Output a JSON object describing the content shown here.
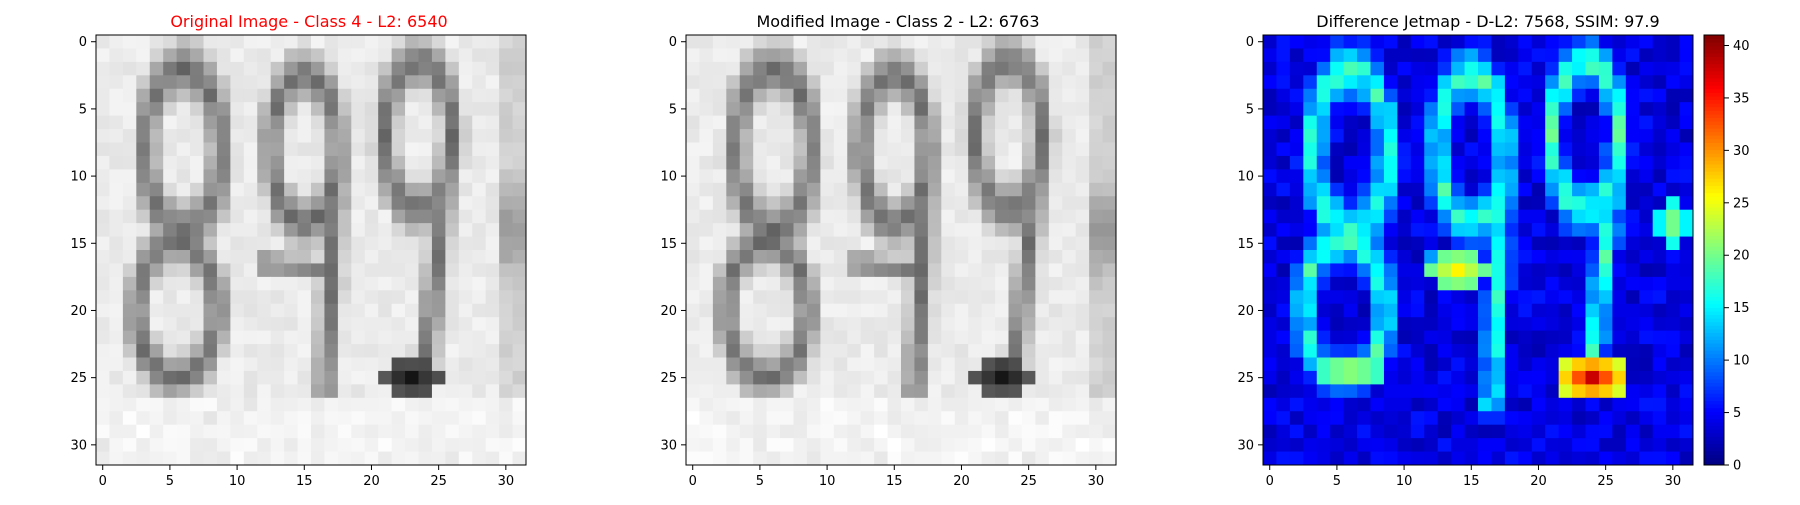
{
  "figure": {
    "panels": [
      {
        "title": "Original Image - Class 4 - L2: 6540",
        "title_color": "#ff0000"
      },
      {
        "title": "Modified Image - Class 2 - L2: 6763",
        "title_color": "#000000"
      },
      {
        "title": "Difference Jetmap - D-L2: 7568, SSIM: 97.9",
        "title_color": "#000000"
      }
    ]
  },
  "chart_data": [
    {
      "type": "heatmap",
      "title": "Original Image - Class 4 - L2: 6540",
      "colormap": "gray",
      "grid_size": [
        32,
        32
      ],
      "content": "grayscale photo of handwritten digits 8 9 9",
      "xticks": [
        "0",
        "5",
        "10",
        "15",
        "20",
        "25",
        "30"
      ],
      "yticks": [
        "0",
        "5",
        "10",
        "15",
        "20",
        "25",
        "30"
      ],
      "xlim": [
        -0.5,
        31.5
      ],
      "ylim": [
        31.5,
        -0.5
      ]
    },
    {
      "type": "heatmap",
      "title": "Modified Image - Class 2 - L2: 6763",
      "colormap": "gray",
      "grid_size": [
        32,
        32
      ],
      "content": "grayscale photo of handwritten digits 8 9 9 (slightly perturbed)",
      "xticks": [
        "0",
        "5",
        "10",
        "15",
        "20",
        "25",
        "30"
      ],
      "yticks": [
        "0",
        "5",
        "10",
        "15",
        "20",
        "25",
        "30"
      ],
      "xlim": [
        -0.5,
        31.5
      ],
      "ylim": [
        31.5,
        -0.5
      ]
    },
    {
      "type": "heatmap",
      "title": "Difference Jetmap - D-L2: 7568, SSIM: 97.9",
      "colormap": "jet",
      "grid_size": [
        32,
        32
      ],
      "xticks": [
        "0",
        "5",
        "10",
        "15",
        "20",
        "25",
        "30"
      ],
      "yticks": [
        "0",
        "5",
        "10",
        "15",
        "20",
        "25",
        "30"
      ],
      "xlim": [
        -0.5,
        31.5
      ],
      "ylim": [
        31.5,
        -0.5
      ],
      "colorbar": {
        "range": [
          0,
          41
        ],
        "ticks": [
          "0",
          "5",
          "10",
          "15",
          "20",
          "25",
          "30",
          "35",
          "40"
        ]
      }
    }
  ]
}
